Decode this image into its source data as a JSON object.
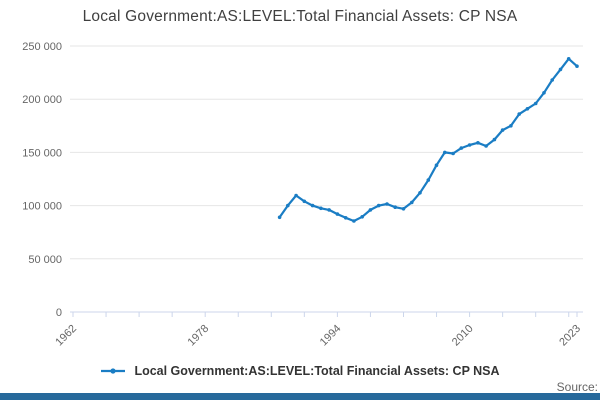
{
  "title": "Local Government:AS:LEVEL:Total Financial Assets: CP NSA",
  "legend": {
    "label": "Local Government:AS:LEVEL:Total Financial Assets: CP NSA",
    "marker": "line-with-dot"
  },
  "source_label": "Source:",
  "colors": {
    "line": "#1a7dc4",
    "axis_line": "#ccd6eb",
    "gridline": "#e6e6e6",
    "tick_label": "#666666",
    "title_text": "#3f3f3f",
    "legend_text": "#333333",
    "footer_bar": "#27699b"
  },
  "chart_data": {
    "type": "line",
    "title": "Local Government:AS:LEVEL:Total Financial Assets: CP NSA",
    "xlabel": "",
    "ylabel": "",
    "grid": true,
    "legend_position": "bottom",
    "marker": "dot",
    "x_axis": {
      "min": 1962,
      "max": 2023,
      "tick_interval_years": 4,
      "labeled_ticks": [
        1962,
        1978,
        1994,
        2010,
        2023
      ],
      "label_rotation_deg": -45
    },
    "y_axis": {
      "min": 0,
      "max": 250000,
      "tick_interval": 50000,
      "tick_labels": [
        "0",
        "50 000",
        "100 000",
        "150 000",
        "200 000",
        "250 000"
      ]
    },
    "x": [
      1987,
      1988,
      1989,
      1990,
      1991,
      1992,
      1993,
      1994,
      1995,
      1996,
      1997,
      1998,
      1999,
      2000,
      2001,
      2002,
      2003,
      2004,
      2005,
      2006,
      2007,
      2008,
      2009,
      2010,
      2011,
      2012,
      2013,
      2014,
      2015,
      2016,
      2017,
      2018,
      2019,
      2020,
      2021,
      2022,
      2023
    ],
    "series": [
      {
        "name": "Local Government:AS:LEVEL:Total Financial Assets: CP NSA",
        "values": [
          89000,
          100000,
          109500,
          104000,
          100000,
          97500,
          96000,
          92000,
          88500,
          85500,
          89500,
          96000,
          100000,
          101500,
          98500,
          97000,
          103000,
          112000,
          124000,
          138000,
          150000,
          149000,
          154000,
          157000,
          159000,
          156000,
          162000,
          171000,
          175000,
          186000,
          191000,
          196000,
          206000,
          218000,
          228000,
          238000,
          231000
        ]
      }
    ]
  }
}
